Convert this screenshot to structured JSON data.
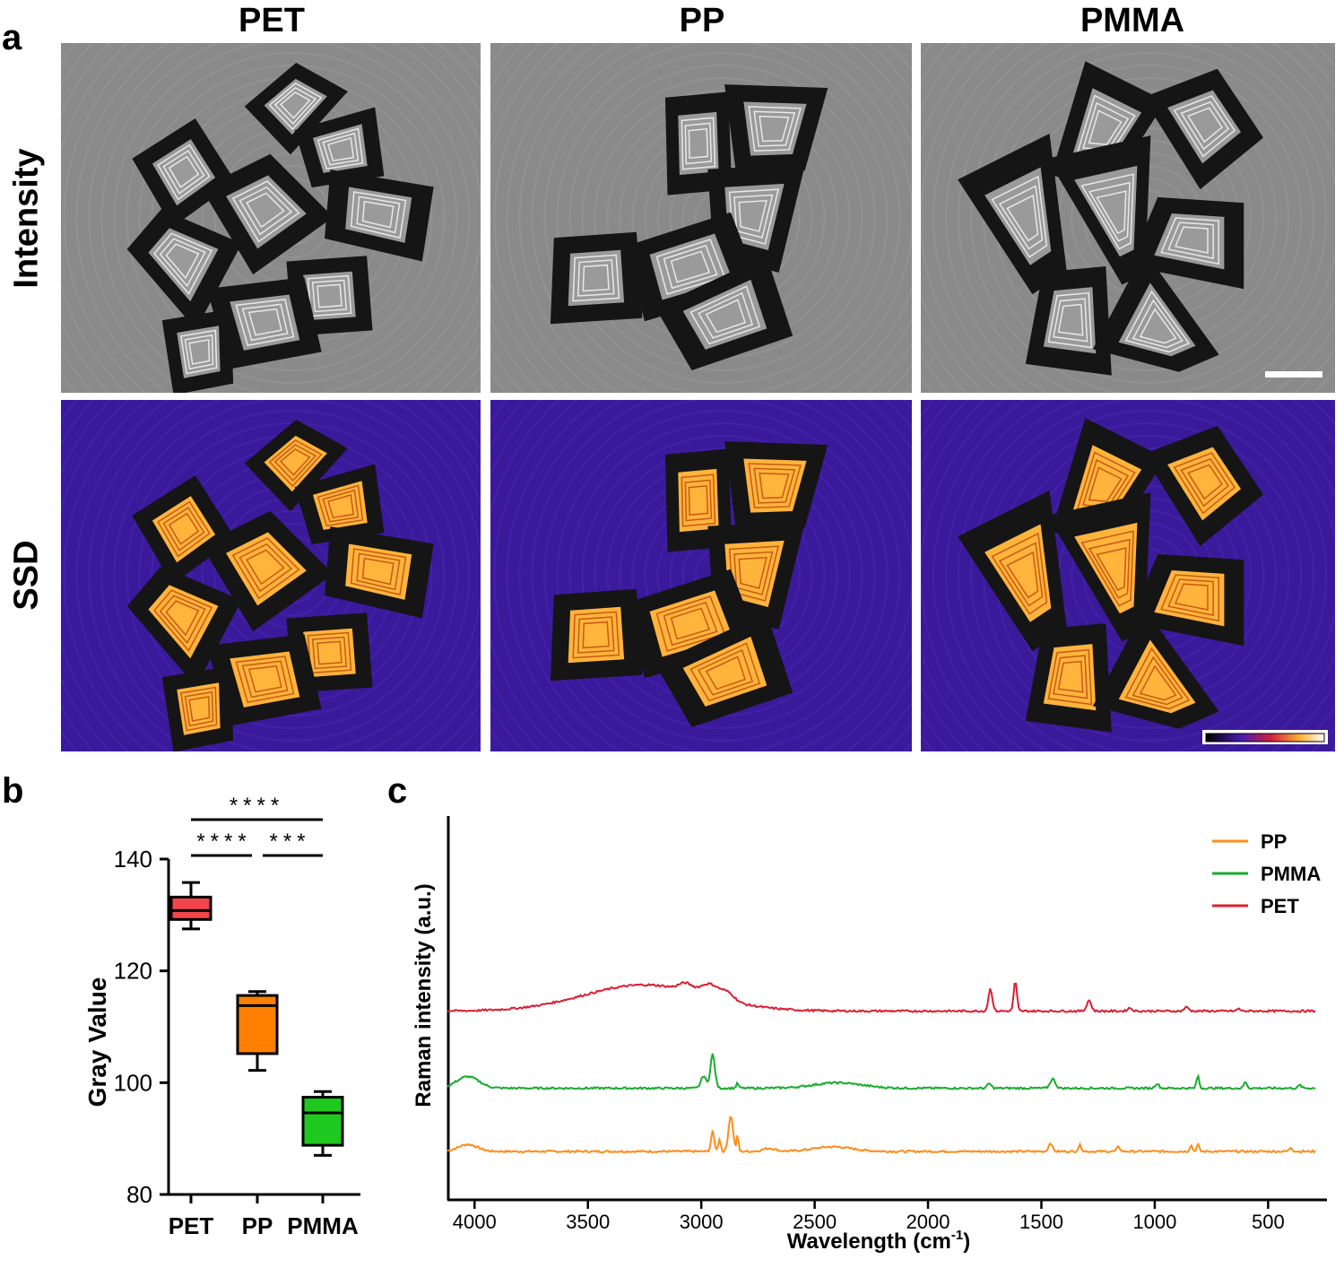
{
  "panel_labels": {
    "a": "a",
    "b": "b",
    "c": "c"
  },
  "panel_a": {
    "columns": [
      "PET",
      "PP",
      "PMMA"
    ],
    "rows": [
      "Intensity",
      "SSD"
    ],
    "colors": {
      "intensity_bg": "#8a8a8a",
      "ssd_bg": "#3a1a9a",
      "ssd_glow": "#ffb43c",
      "particle_edge": "#151515"
    }
  },
  "chart_data": [
    {
      "type": "box",
      "title": "",
      "xlabel": "",
      "ylabel": "Gray Value",
      "ylim": [
        80,
        140
      ],
      "yticks": [
        80,
        100,
        120,
        140
      ],
      "categories": [
        "PET",
        "PP",
        "PMMA"
      ],
      "boxes": [
        {
          "name": "PET",
          "min": 127.5,
          "q1": 129.2,
          "median": 130.8,
          "q3": 133.2,
          "max": 135.8,
          "color": "#f0464b"
        },
        {
          "name": "PP",
          "min": 102.2,
          "q1": 105.2,
          "median": 113.8,
          "q3": 115.6,
          "max": 116.3,
          "color": "#ff8000"
        },
        {
          "name": "PMMA",
          "min": 87.0,
          "q1": 88.8,
          "median": 94.6,
          "q3": 97.4,
          "max": 98.4,
          "color": "#1ec81e"
        }
      ],
      "significance": [
        {
          "from": "PET",
          "to": "PMMA",
          "label": "****"
        },
        {
          "from": "PET",
          "to": "PP",
          "label": "****"
        },
        {
          "from": "PP",
          "to": "PMMA",
          "label": "***"
        }
      ]
    },
    {
      "type": "line",
      "xlabel": "Wavelength (cm",
      "xlabel_sup": "-1",
      "xlabel_close": ")",
      "ylabel": "Raman intensity (a.u.)",
      "xlim": [
        4100,
        280
      ],
      "xticks": [
        4000,
        3500,
        3000,
        2500,
        2000,
        1500,
        1000,
        500
      ],
      "legend_position": "top-right",
      "series": [
        {
          "name": "PP",
          "color": "#ff8c1a",
          "baseline": 0.0,
          "peaks": [
            [
              4030,
              0.9,
              60
            ],
            [
              2950,
              2.6,
              10
            ],
            [
              2920,
              1.6,
              8
            ],
            [
              2870,
              4.6,
              14
            ],
            [
              2840,
              2.1,
              6
            ],
            [
              2700,
              0.4,
              40
            ],
            [
              2420,
              0.6,
              120
            ],
            [
              1460,
              1.1,
              12
            ],
            [
              1330,
              0.8,
              10
            ],
            [
              1160,
              0.6,
              10
            ],
            [
              840,
              0.8,
              8
            ],
            [
              810,
              0.9,
              8
            ],
            [
              400,
              0.5,
              10
            ]
          ]
        },
        {
          "name": "PMMA",
          "color": "#1aab2e",
          "baseline": 8.2,
          "peaks": [
            [
              4030,
              1.5,
              70
            ],
            [
              2990,
              1.6,
              16
            ],
            [
              2950,
              4.4,
              14
            ],
            [
              2840,
              0.6,
              8
            ],
            [
              2400,
              0.7,
              150
            ],
            [
              1730,
              0.6,
              12
            ],
            [
              1450,
              1.2,
              16
            ],
            [
              990,
              0.6,
              12
            ],
            [
              810,
              1.6,
              8
            ],
            [
              600,
              0.8,
              10
            ],
            [
              360,
              0.4,
              10
            ]
          ]
        },
        {
          "name": "PET",
          "color": "#dc1e32",
          "baseline": 18.2,
          "peaks": [
            [
              3250,
              3.4,
              380
            ],
            [
              3070,
              0.9,
              40
            ],
            [
              2960,
              1.6,
              60
            ],
            [
              2880,
              0.9,
              40
            ],
            [
              1725,
              2.9,
              12
            ],
            [
              1615,
              3.8,
              10
            ],
            [
              1290,
              1.4,
              14
            ],
            [
              1110,
              0.4,
              14
            ],
            [
              860,
              0.5,
              14
            ],
            [
              630,
              0.3,
              10
            ]
          ]
        }
      ]
    }
  ]
}
